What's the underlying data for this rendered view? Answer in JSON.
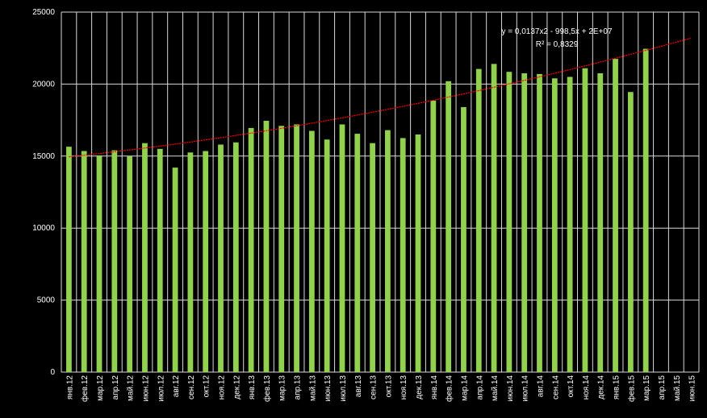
{
  "chart_data": {
    "type": "bar",
    "categories": [
      "янв.12",
      "фев.12",
      "мар.12",
      "апр.12",
      "май.12",
      "июн.12",
      "июл.12",
      "авг.12",
      "сен.12",
      "окт.12",
      "ноя.12",
      "дек.12",
      "янв.13",
      "фев.13",
      "мар.13",
      "апр.13",
      "май.13",
      "июн.13",
      "июл.13",
      "авг.13",
      "сен.13",
      "окт.13",
      "ноя.13",
      "дек.13",
      "янв.14",
      "фев.14",
      "мар.14",
      "апр.14",
      "май.14",
      "июн.14",
      "июл.14",
      "авг.14",
      "сен.14",
      "окт.14",
      "ноя.14",
      "дек.14",
      "янв.15",
      "фев.15",
      "мар.15",
      "апр.15",
      "май.15",
      "июн.15"
    ],
    "series": [
      {
        "values": [
          15650,
          15350,
          15050,
          15400,
          15000,
          15900,
          15500,
          14200,
          15250,
          15350,
          15800,
          15950,
          16950,
          17450,
          17100,
          17200,
          16750,
          16150,
          17200,
          16550,
          15900,
          16800,
          16250,
          16500,
          18850,
          20200,
          18400,
          21050,
          21400,
          20850,
          20750,
          20700,
          20400,
          20500,
          21100,
          20750,
          21750,
          19450,
          22450,
          null,
          null,
          null
        ],
        "color": "#92d050"
      }
    ],
    "trendline": {
      "type": "polynomial",
      "color": "#ff0000",
      "equation": "y = 0,0137x2 - 998,5x + 2E+07",
      "r_squared": "R² = 0,8329",
      "start": 14950,
      "end": 23200
    },
    "ylim": [
      0,
      25000
    ],
    "y_ticks": [
      0,
      5000,
      10000,
      15000,
      20000,
      25000
    ],
    "grid": "horizontal",
    "legend": "none",
    "background": "#000000",
    "text_color": "#ffffff"
  }
}
